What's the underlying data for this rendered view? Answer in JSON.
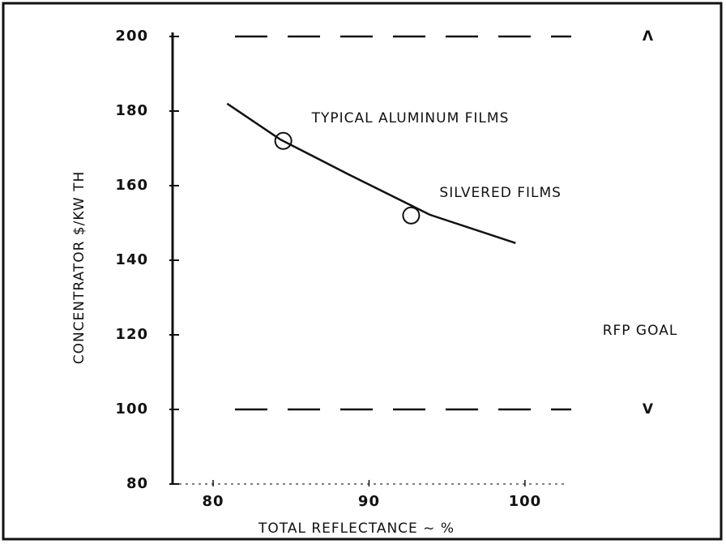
{
  "chart_data": {
    "type": "line",
    "x_label": "TOTAL REFLECTANCE ~ %",
    "y_label": "CONCENTRATOR $/KW TH",
    "xlim": [
      77.4,
      102.5
    ],
    "xticks": [
      80,
      90,
      100
    ],
    "ylim": [
      80,
      200
    ],
    "yticks": [
      80,
      100,
      120,
      140,
      160,
      180,
      200
    ],
    "x": [
      80.9,
      84.3,
      88.7,
      93.9,
      99.4
    ],
    "values": [
      182,
      172.4,
      163,
      152.2,
      144.6
    ],
    "color": "#111111",
    "points": [
      {
        "x": 84.5,
        "y": 172,
        "label": "TYPICAL ALUMINUM FILMS"
      },
      {
        "x": 92.7,
        "y": 152,
        "label": "SILVERED FILMS"
      }
    ],
    "reference_lines": [
      {
        "value": 200,
        "label": "Λ"
      },
      {
        "value": 100,
        "label": "V"
      }
    ],
    "goal_label": "RFP GOAL"
  }
}
